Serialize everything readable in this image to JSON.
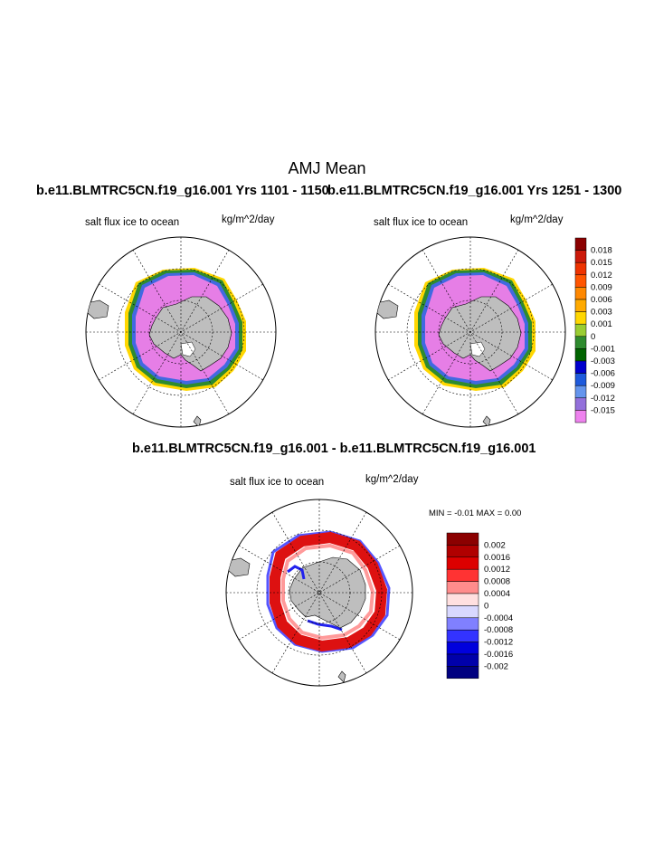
{
  "main_title": "AMJ Mean",
  "panels": [
    {
      "case_title": "b.e11.BLMTRC5CN.f19_g16.001  Yrs 1101 - 1150",
      "left_label": "salt flux ice to ocean",
      "right_label": "kg/m^2/day"
    },
    {
      "case_title": "b.e11.BLMTRC5CN.f19_g16.001  Yrs 1251 - 1300",
      "left_label": "salt flux ice to ocean",
      "right_label": "kg/m^2/day"
    }
  ],
  "diff_panel": {
    "title": "b.e11.BLMTRC5CN.f19_g16.001 - b.e11.BLMTRC5CN.f19_g16.001",
    "left_label": "salt flux ice to ocean",
    "right_label": "kg/m^2/day",
    "minmax": "MIN =  -0.01 MAX =   0.00"
  },
  "colorbar_main": {
    "labels": [
      "0.018",
      "0.015",
      "0.012",
      "0.009",
      "0.006",
      "0.003",
      "0.001",
      "0",
      "-0.001",
      "-0.003",
      "-0.006",
      "-0.009",
      "-0.012",
      "-0.015"
    ],
    "colors": [
      "#8b0000",
      "#cc1a0a",
      "#ee3300",
      "#ff5500",
      "#ff8800",
      "#ffaa00",
      "#ffd700",
      "#9acd32",
      "#2e8b2e",
      "#006400",
      "#0000cd",
      "#1e5adc",
      "#6495ed",
      "#9370db",
      "#ee82ee"
    ]
  },
  "colorbar_diff": {
    "labels": [
      "0.002",
      "0.0016",
      "0.0012",
      "0.0008",
      "0.0004",
      "0",
      "-0.0004",
      "-0.0008",
      "-0.0012",
      "-0.0016",
      "-0.002"
    ],
    "colors": [
      "#8b0000",
      "#b00000",
      "#dd0000",
      "#ff3333",
      "#ff8c8c",
      "#ffe0e0",
      "#d8d8ff",
      "#8080ff",
      "#3333ff",
      "#0000dd",
      "#0000aa",
      "#000080"
    ]
  },
  "map_colors": {
    "land": "#bebebe",
    "ice_core": "#e67ee6",
    "ice_edge_blue": "#4169e1",
    "ice_edge_green": "#2e8b2e",
    "ice_edge_yellow": "#ffd700",
    "diff_red": "#dd1111",
    "diff_blue": "#2222ee"
  }
}
